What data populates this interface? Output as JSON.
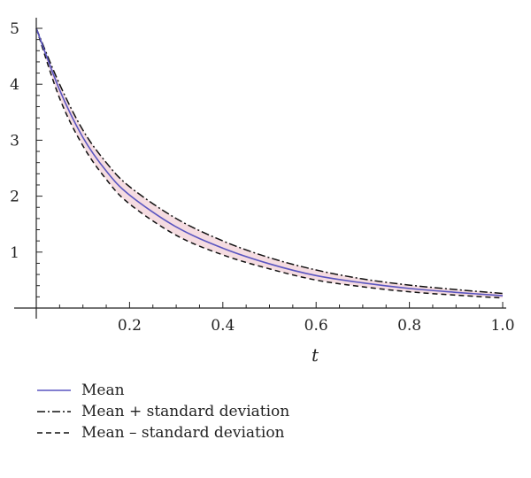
{
  "chart_data": {
    "type": "line",
    "title": "",
    "xlabel": "t",
    "ylabel": "",
    "xlim": [
      0,
      1.0
    ],
    "ylim": [
      0,
      5
    ],
    "x_ticks": [
      0.2,
      0.4,
      0.6,
      0.8,
      1.0
    ],
    "x_tick_labels": [
      "0.2",
      "0.4",
      "0.6",
      "0.8",
      "1.0"
    ],
    "y_ticks": [
      1,
      2,
      3,
      4,
      5
    ],
    "y_tick_labels": [
      "1",
      "2",
      "3",
      "4",
      "5"
    ],
    "grid": false,
    "legend_position": "bottom-left",
    "band_color": "#f3d6dc",
    "series": [
      {
        "name": "Mean",
        "style": "solid",
        "color": "#5a55c0",
        "x": [
          0,
          0.05,
          0.1,
          0.15,
          0.2,
          0.3,
          0.4,
          0.5,
          0.6,
          0.7,
          0.8,
          0.9,
          1.0
        ],
        "values": [
          5.0,
          3.9,
          3.05,
          2.45,
          2.02,
          1.45,
          1.07,
          0.79,
          0.58,
          0.45,
          0.35,
          0.28,
          0.22
        ]
      },
      {
        "name": "Mean + standard deviation",
        "style": "dashdot",
        "color": "#111111",
        "x": [
          0,
          0.05,
          0.1,
          0.15,
          0.2,
          0.3,
          0.4,
          0.5,
          0.6,
          0.7,
          0.8,
          0.9,
          1.0
        ],
        "values": [
          5.0,
          4.0,
          3.18,
          2.6,
          2.17,
          1.6,
          1.2,
          0.9,
          0.68,
          0.52,
          0.41,
          0.33,
          0.26
        ]
      },
      {
        "name": "Mean – standard deviation",
        "style": "dashed",
        "color": "#111111",
        "x": [
          0,
          0.05,
          0.1,
          0.15,
          0.2,
          0.3,
          0.4,
          0.5,
          0.6,
          0.7,
          0.8,
          0.9,
          1.0
        ],
        "values": [
          5.0,
          3.75,
          2.9,
          2.3,
          1.86,
          1.3,
          0.95,
          0.7,
          0.5,
          0.38,
          0.29,
          0.23,
          0.18
        ]
      }
    ]
  }
}
